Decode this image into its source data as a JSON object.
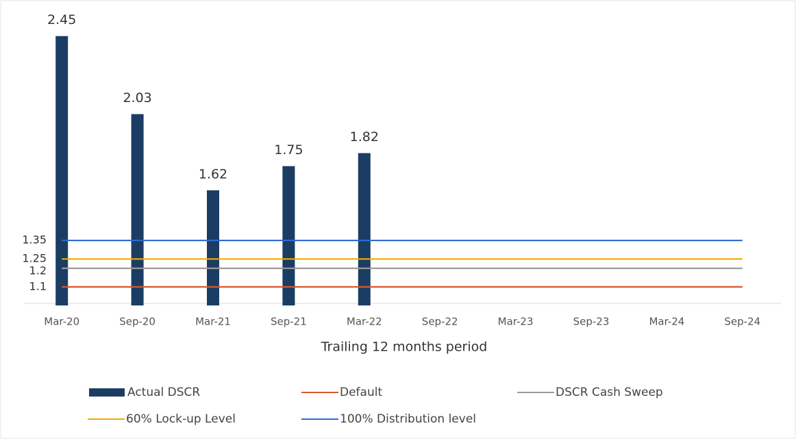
{
  "chart_data": {
    "type": "bar",
    "x_label": "Trailing 12 months period",
    "categories": [
      "Mar-20",
      "Sep-20",
      "Mar-21",
      "Sep-21",
      "Mar-22",
      "Sep-22",
      "Mar-23",
      "Sep-23",
      "Mar-24",
      "Sep-24"
    ],
    "ylim": [
      1.0,
      2.6
    ],
    "series": [
      {
        "name": "Actual DSCR",
        "type": "bar",
        "color": "#1b3d63",
        "values": [
          2.45,
          2.03,
          1.62,
          1.75,
          1.82,
          null,
          null,
          null,
          null,
          null
        ]
      },
      {
        "name": "Default",
        "type": "line",
        "color": "#d9572c",
        "values": [
          1.1,
          1.1,
          1.1,
          1.1,
          1.1,
          1.1,
          1.1,
          1.1,
          1.1,
          1.1
        ]
      },
      {
        "name": "DSCR Cash Sweep",
        "type": "line",
        "color": "#9a9a9a",
        "values": [
          1.2,
          1.2,
          1.2,
          1.2,
          1.2,
          1.2,
          1.2,
          1.2,
          1.2,
          1.2
        ]
      },
      {
        "name": "60% Lock-up Level",
        "type": "line",
        "color": "#f2a900",
        "values": [
          1.25,
          1.25,
          1.25,
          1.25,
          1.25,
          1.25,
          1.25,
          1.25,
          1.25,
          1.25
        ]
      },
      {
        "name": "100% Distribution level",
        "type": "line",
        "color": "#2e6bd1",
        "values": [
          1.35,
          1.35,
          1.35,
          1.35,
          1.35,
          1.35,
          1.35,
          1.35,
          1.35,
          1.35
        ]
      }
    ]
  }
}
